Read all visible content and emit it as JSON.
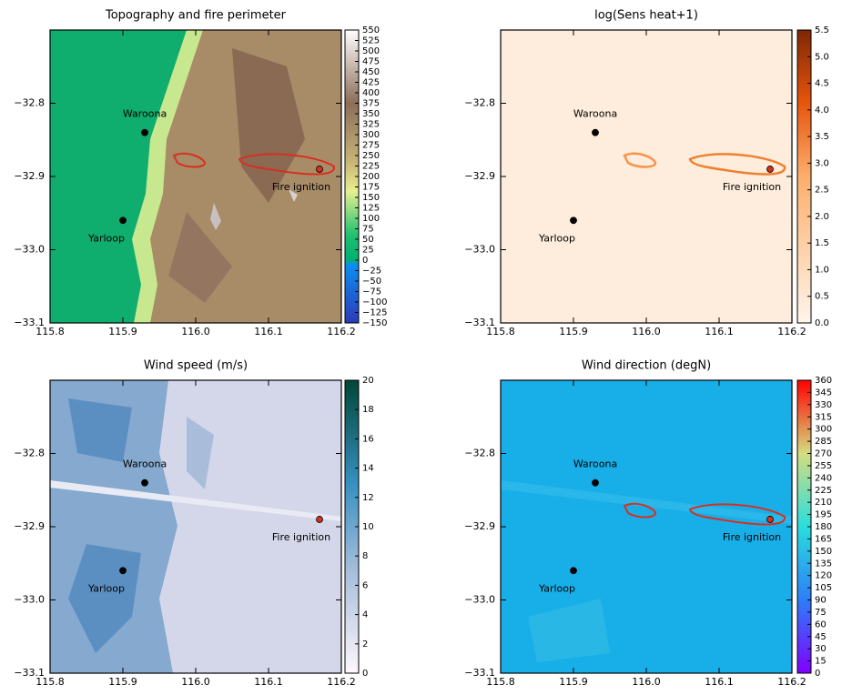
{
  "chart_data": [
    {
      "type": "contour",
      "title": "Topography and fire perimeter",
      "xlim": [
        115.8,
        116.2
      ],
      "ylim": [
        -33.1,
        -32.7
      ],
      "xticks": [
        115.8,
        115.9,
        {
          "value": 116,
          "label": "116.0"
        },
        116.1,
        116.2
      ],
      "yticks": [
        {
          "value": -33.1,
          "label": "−33.1"
        },
        {
          "value": -33,
          "label": "−33.0"
        },
        {
          "value": -32.9,
          "label": "−32.9"
        },
        {
          "value": -32.8,
          "label": "−32.8"
        }
      ],
      "clim": [
        -150,
        550
      ],
      "cticks": [
        {
          "value": -150,
          "label": "−150"
        },
        {
          "value": -125,
          "label": "−125"
        },
        {
          "value": -100,
          "label": "−100"
        },
        {
          "value": -75,
          "label": "−75"
        },
        {
          "value": -50,
          "label": "−50"
        },
        {
          "value": -25,
          "label": "−25"
        },
        0,
        25,
        50,
        75,
        100,
        125,
        150,
        175,
        200,
        225,
        250,
        275,
        300,
        325,
        350,
        375,
        400,
        425,
        450,
        475,
        500,
        525,
        550
      ],
      "points": [
        {
          "label": "Waroona",
          "x": 115.93,
          "y": -32.84,
          "color": "#000000"
        },
        {
          "label": "Yarloop",
          "x": 115.9,
          "y": -32.96,
          "color": "#000000"
        },
        {
          "label": "Fire ignition",
          "x": 116.17,
          "y": -32.89,
          "color": "#d7301f"
        }
      ]
    },
    {
      "type": "contour",
      "title": "log(Sens heat+1)",
      "xlim": [
        115.8,
        116.2
      ],
      "ylim": [
        -33.1,
        -32.7
      ],
      "xticks": [
        115.8,
        115.9,
        {
          "value": 116,
          "label": "116.0"
        },
        116.1,
        116.2
      ],
      "yticks": [
        {
          "value": -33.1,
          "label": "−33.1"
        },
        {
          "value": -33,
          "label": "−33.0"
        },
        {
          "value": -32.9,
          "label": "−32.9"
        },
        {
          "value": -32.8,
          "label": "−32.8"
        }
      ],
      "clim": [
        0,
        5.5
      ],
      "cticks": [
        {
          "value": 0,
          "label": "0.0"
        },
        0.5,
        {
          "value": 1,
          "label": "1.0"
        },
        1.5,
        {
          "value": 2,
          "label": "2.0"
        },
        2.5,
        {
          "value": 3,
          "label": "3.0"
        },
        3.5,
        {
          "value": 4,
          "label": "4.0"
        },
        4.5,
        {
          "value": 5,
          "label": "5.0"
        },
        5.5
      ],
      "points": [
        {
          "label": "Waroona",
          "x": 115.93,
          "y": -32.84,
          "color": "#000000"
        },
        {
          "label": "Yarloop",
          "x": 115.9,
          "y": -32.96,
          "color": "#000000"
        },
        {
          "label": "Fire ignition",
          "x": 116.17,
          "y": -32.89,
          "color": "#d7301f"
        }
      ]
    },
    {
      "type": "contour",
      "title": "Wind speed (m/s)",
      "xlim": [
        115.8,
        116.2
      ],
      "ylim": [
        -33.1,
        -32.7
      ],
      "xticks": [
        115.8,
        115.9,
        {
          "value": 116,
          "label": "116.0"
        },
        116.1,
        116.2
      ],
      "yticks": [
        {
          "value": -33.1,
          "label": "−33.1"
        },
        {
          "value": -33,
          "label": "−33.0"
        },
        {
          "value": -32.9,
          "label": "−32.9"
        },
        {
          "value": -32.8,
          "label": "−32.8"
        }
      ],
      "clim": [
        0,
        20
      ],
      "cticks": [
        0,
        2,
        4,
        6,
        8,
        10,
        12,
        14,
        16,
        18,
        20
      ],
      "points": [
        {
          "label": "Waroona",
          "x": 115.93,
          "y": -32.84,
          "color": "#000000"
        },
        {
          "label": "Yarloop",
          "x": 115.9,
          "y": -32.96,
          "color": "#000000"
        },
        {
          "label": "Fire ignition",
          "x": 116.17,
          "y": -32.89,
          "color": "#d7301f"
        }
      ]
    },
    {
      "type": "contour",
      "title": "Wind direction (degN)",
      "xlim": [
        115.8,
        116.2
      ],
      "ylim": [
        -33.1,
        -32.7
      ],
      "xticks": [
        115.8,
        115.9,
        {
          "value": 116,
          "label": "116.0"
        },
        116.1,
        116.2
      ],
      "yticks": [
        {
          "value": -33.1,
          "label": "−33.1"
        },
        {
          "value": -33,
          "label": "−33.0"
        },
        {
          "value": -32.9,
          "label": "−32.9"
        },
        {
          "value": -32.8,
          "label": "−32.8"
        }
      ],
      "clim": [
        0,
        360
      ],
      "cticks": [
        0,
        15,
        30,
        45,
        60,
        75,
        90,
        105,
        120,
        135,
        150,
        165,
        180,
        195,
        210,
        225,
        240,
        255,
        270,
        285,
        300,
        315,
        330,
        345,
        360
      ],
      "points": [
        {
          "label": "Waroona",
          "x": 115.93,
          "y": -32.84,
          "color": "#000000"
        },
        {
          "label": "Yarloop",
          "x": 115.9,
          "y": -32.96,
          "color": "#000000"
        },
        {
          "label": "Fire ignition",
          "x": 116.17,
          "y": -32.89,
          "color": "#d7301f"
        }
      ]
    }
  ]
}
